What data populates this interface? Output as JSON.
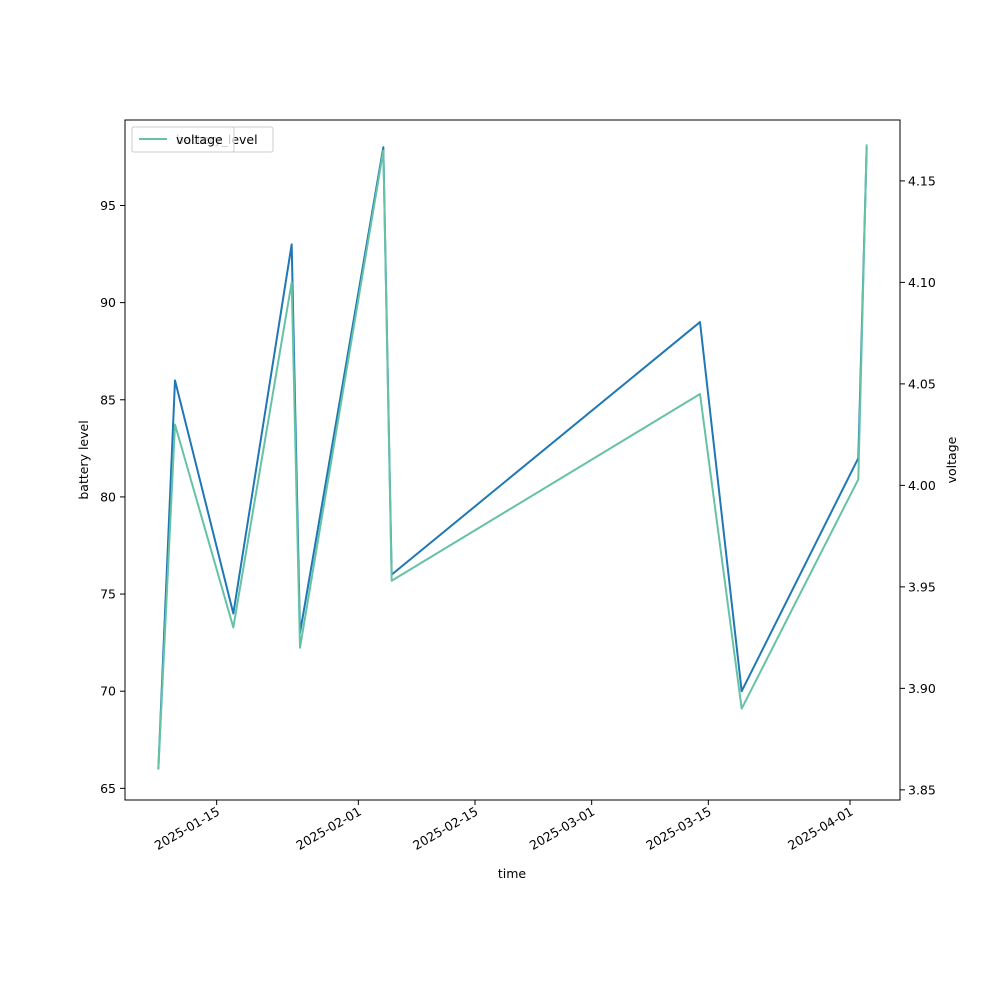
{
  "chart_data": {
    "type": "line",
    "xlabel": "time",
    "ylabel_left": "battery level",
    "ylabel_right": "voltage",
    "x_ticks": [
      "2025-01-15",
      "2025-02-01",
      "2025-02-15",
      "2025-03-01",
      "2025-03-15",
      "2025-04-01"
    ],
    "y_left_ticks": [
      65,
      70,
      75,
      80,
      85,
      90,
      95
    ],
    "y_right_ticks": [
      "3.85",
      "3.90",
      "3.95",
      "4.00",
      "4.05",
      "4.10",
      "4.15"
    ],
    "xlim": [
      "2025-01-04",
      "2025-04-07"
    ],
    "ylim_left": [
      64.4,
      99.4
    ],
    "ylim_right": [
      3.845,
      4.18
    ],
    "grid": false,
    "legend": {
      "placement": "upper-left",
      "entries": [
        "battery_level",
        "voltage"
      ]
    },
    "series": [
      {
        "name": "battery_level",
        "axis": "left",
        "color": "#1f77b4",
        "points": [
          [
            "2025-01-08",
            66
          ],
          [
            "2025-01-10",
            86
          ],
          [
            "2025-01-17",
            74
          ],
          [
            "2025-01-24",
            93
          ],
          [
            "2025-01-25",
            73
          ],
          [
            "2025-02-04",
            98
          ],
          [
            "2025-02-05",
            76
          ],
          [
            "2025-03-14",
            89
          ],
          [
            "2025-03-19",
            70
          ],
          [
            "2025-04-02",
            82
          ],
          [
            "2025-04-03",
            98
          ]
        ]
      },
      {
        "name": "voltage",
        "axis": "right",
        "color": "#66c2a5",
        "points": [
          [
            "2025-01-08",
            3.86
          ],
          [
            "2025-01-10",
            4.03
          ],
          [
            "2025-01-17",
            3.93
          ],
          [
            "2025-01-24",
            4.1
          ],
          [
            "2025-01-25",
            3.92
          ],
          [
            "2025-02-04",
            4.165
          ],
          [
            "2025-02-05",
            3.953
          ],
          [
            "2025-03-14",
            4.045
          ],
          [
            "2025-03-19",
            3.89
          ],
          [
            "2025-04-02",
            4.003
          ],
          [
            "2025-04-03",
            4.168
          ]
        ]
      }
    ]
  }
}
